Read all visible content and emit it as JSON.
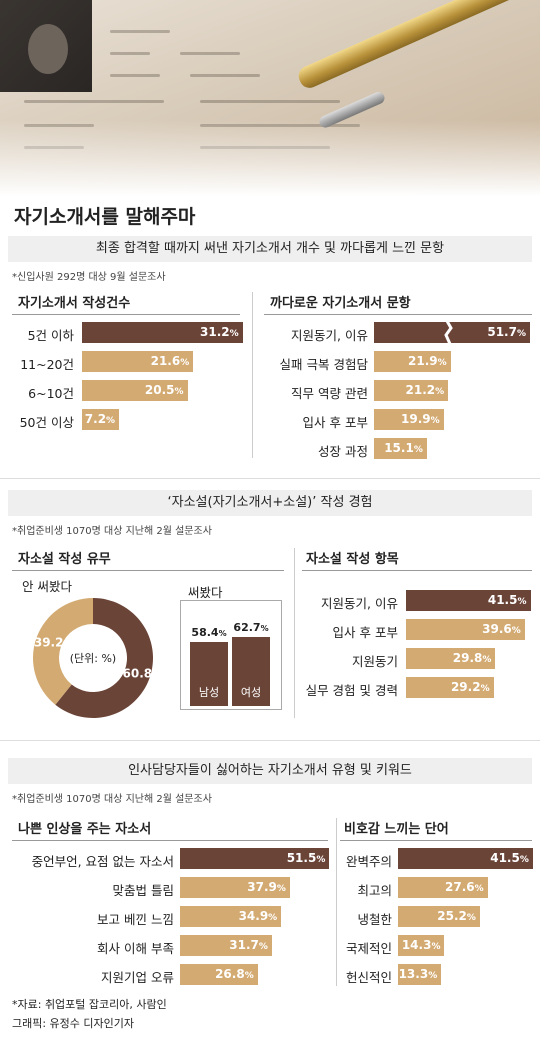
{
  "main_title": "자기소개서를 말해주마",
  "colors": {
    "dark": "#6b4438",
    "light": "#d3aa72"
  },
  "section1": {
    "banner": "최종 합격할 때까지 써낸 자기소개서 개수 및 까다롭게 느낀 문항",
    "note": "*신입사원 292명 대상 9월 설문조사",
    "left_title": "자기소개서 작성건수",
    "right_title": "까다로운 자기소개서 문항"
  },
  "section2": {
    "banner": "‘자소설(자기소개서+소설)’ 작성 경험",
    "note": "*취업준비생 1070명 대상 지난해 2월 설문조사",
    "left_title": "자소설 작성 유무",
    "right_title": "자소설 작성 항목",
    "donut_unit": "(단위: %)",
    "donut_label_no": "안 써봤다",
    "donut_label_yes": "써봤다"
  },
  "section3": {
    "banner": "인사담당자들이 싫어하는 자기소개서 유형 및 키워드",
    "note": "*취업준비생 1070명 대상 지난해 2월 설문조사",
    "left_title": "나쁜 인상을 주는 자소서",
    "right_title": "비호감 느끼는 단어"
  },
  "footer": {
    "source": "*자료: 취업포털 잡코리아, 사람인",
    "credit": "그래픽: 유정수 디자인기자"
  },
  "chart_data": [
    {
      "type": "bar",
      "orientation": "horizontal",
      "title": "자기소개서 작성건수",
      "categories": [
        "5건 이하",
        "11~20건",
        "6~10건",
        "50건 이상"
      ],
      "values": [
        31.2,
        21.6,
        20.5,
        7.2
      ],
      "unit": "%"
    },
    {
      "type": "bar",
      "orientation": "horizontal",
      "title": "까다로운 자기소개서 문항",
      "categories": [
        "지원동기, 이유",
        "실패 극복 경험담",
        "직무 역량 관련",
        "입사 후 포부",
        "성장 과정"
      ],
      "values": [
        51.7,
        21.9,
        21.2,
        19.9,
        15.1
      ],
      "unit": "%",
      "axis_break_on_first_bar": true
    },
    {
      "type": "pie",
      "title": "자소설 작성 유무",
      "categories": [
        "써봤다",
        "안 써봤다"
      ],
      "values": [
        60.8,
        39.2
      ],
      "unit": "%"
    },
    {
      "type": "bar",
      "orientation": "vertical",
      "categories": [
        "남성",
        "여성"
      ],
      "values": [
        58.4,
        62.7
      ],
      "unit": "%"
    },
    {
      "type": "bar",
      "orientation": "horizontal",
      "title": "자소설 작성 항목",
      "categories": [
        "지원동기, 이유",
        "입사 후 포부",
        "지원동기",
        "실무 경험 및 경력"
      ],
      "values": [
        41.5,
        39.6,
        29.8,
        29.2
      ],
      "unit": "%"
    },
    {
      "type": "bar",
      "orientation": "horizontal",
      "title": "나쁜 인상을 주는 자소서",
      "categories": [
        "중언부언, 요점 없는 자소서",
        "맞춤법 틀림",
        "보고 베낀 느낌",
        "회사 이해 부족",
        "지원기업 오류"
      ],
      "values": [
        51.5,
        37.9,
        34.9,
        31.7,
        26.8
      ],
      "unit": "%"
    },
    {
      "type": "bar",
      "orientation": "horizontal",
      "title": "비호감 느끼는 단어",
      "categories": [
        "완벽주의",
        "최고의",
        "냉철한",
        "국제적인",
        "헌신적인"
      ],
      "values": [
        41.5,
        27.6,
        25.2,
        14.3,
        13.3
      ],
      "unit": "%"
    }
  ]
}
